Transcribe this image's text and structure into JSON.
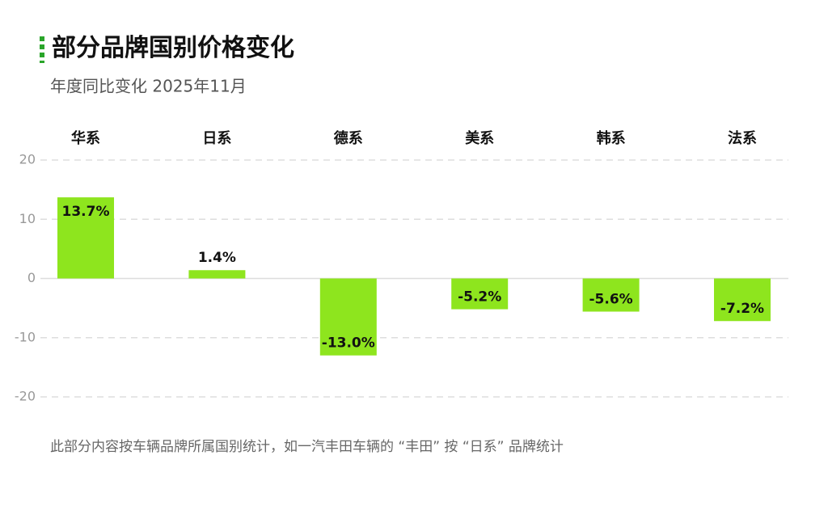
{
  "chart_data": {
    "type": "bar",
    "title": "部分品牌国别价格变化",
    "subtitle": "年度同比变化 2025年11月",
    "categories": [
      "华系",
      "日系",
      "德系",
      "美系",
      "韩系",
      "法系"
    ],
    "values": [
      13.7,
      1.4,
      -13.0,
      -5.2,
      -5.6,
      -7.2
    ],
    "value_labels": [
      "13.7%",
      "1.4%",
      "-13.0%",
      "-5.2%",
      "-5.6%",
      "-7.2%"
    ],
    "color": "#8ee51e",
    "ylim": [
      -20,
      20
    ],
    "yticks": [
      -20,
      -10,
      0,
      10,
      20
    ],
    "grid": true,
    "note": "此部分内容按车辆品牌所属国别统计，如一汽丰田车辆的 “丰田” 按 “日系” 品牌统计"
  }
}
